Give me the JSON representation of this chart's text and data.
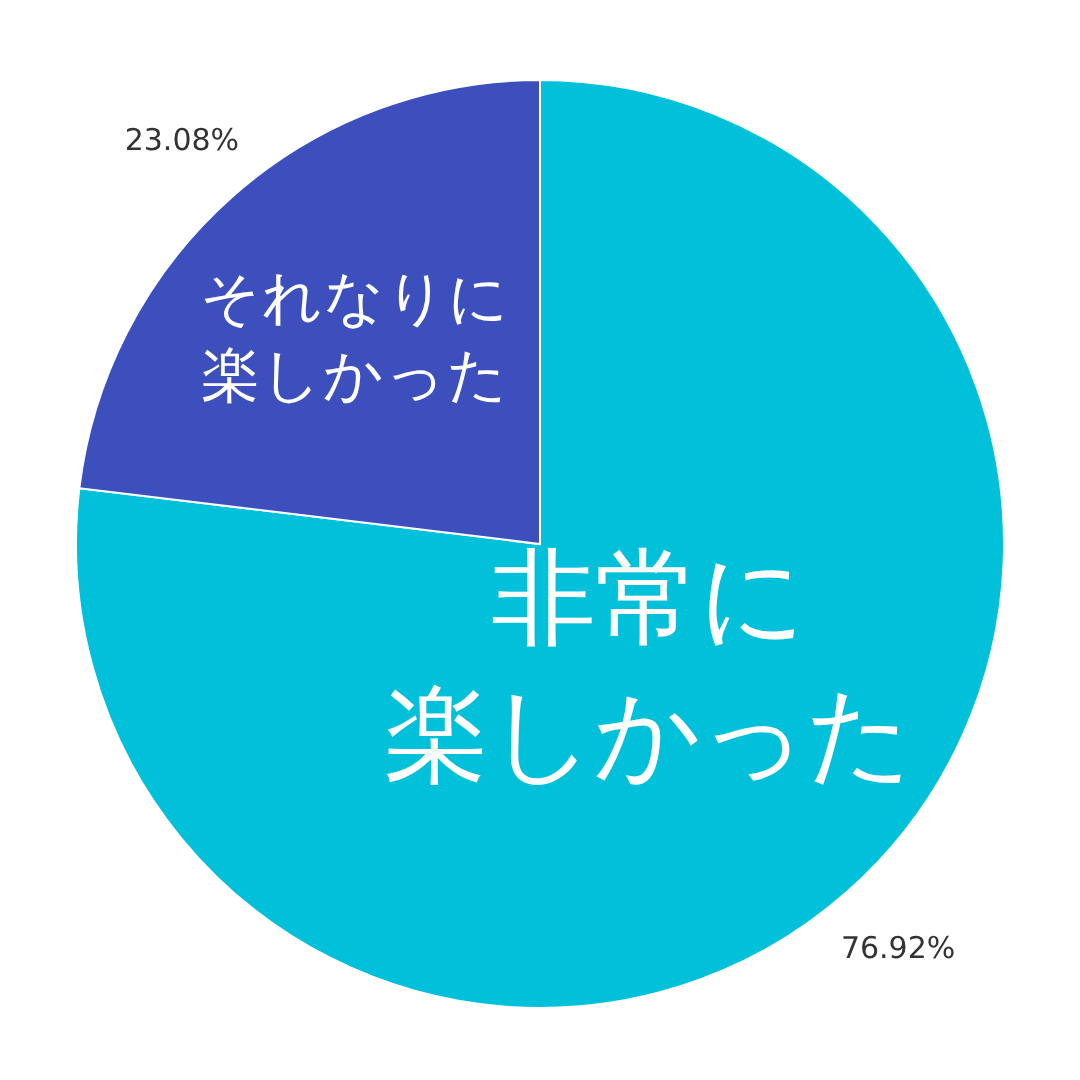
{
  "chart_data": {
    "type": "pie",
    "categories": [
      "非常に楽しかった",
      "それなりに楽しかった"
    ],
    "values": [
      76.92,
      23.08
    ],
    "colors": [
      "#00c0da",
      "#3c4fbd"
    ],
    "value_labels": [
      "76.92%",
      "23.08%"
    ]
  }
}
